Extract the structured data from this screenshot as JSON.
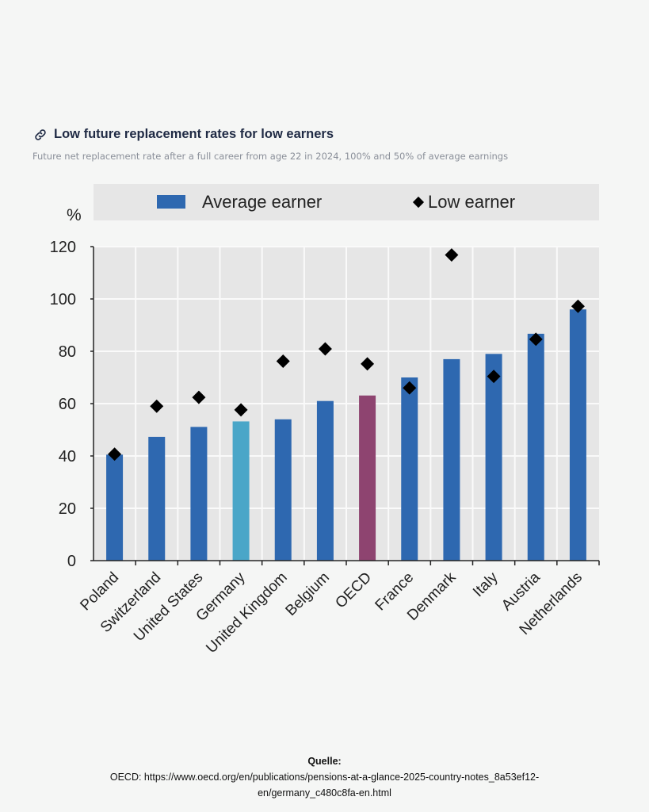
{
  "header": {
    "title": "Low future replacement rates for low earners",
    "subtitle": "Future net replacement rate after a full career from age 22 in 2024, 100% and 50% of average earnings",
    "icon": "link-icon"
  },
  "chart_data": {
    "type": "bar",
    "title": "Low future replacement rates for low earners",
    "subtitle": "Future net replacement rate after a full career from age 22 in 2024, 100% and 50% of average earnings",
    "ylabel": "%",
    "ylim": [
      0,
      120
    ],
    "yticks": [
      0,
      20,
      40,
      60,
      80,
      100,
      120
    ],
    "grid": true,
    "legend_position": "top",
    "categories": [
      "Poland",
      "Switzerland",
      "United States",
      "Germany",
      "United Kingdom",
      "Belgium",
      "OECD",
      "France",
      "Denmark",
      "Italy",
      "Austria",
      "Netherlands"
    ],
    "series": [
      {
        "name": "Average earner",
        "type": "bar",
        "color": "#2e68b0",
        "values": [
          40.5,
          47.3,
          51.1,
          53.2,
          54,
          61,
          63.1,
          70,
          77,
          79,
          86.7,
          96
        ]
      },
      {
        "name": "Low earner",
        "type": "scatter",
        "marker": "diamond",
        "color": "#000000",
        "values": [
          40.7,
          59,
          62.4,
          57.6,
          76.2,
          80.9,
          75.2,
          66,
          116.8,
          70.4,
          84.6,
          97.2
        ]
      }
    ],
    "highlight_colors": {
      "Germany": "#4aa6c8",
      "OECD": "#8e4470"
    }
  },
  "footer": {
    "label": "Quelle:",
    "line1": "OECD: https://www.oecd.org/en/publications/pensions-at-a-glance-2025-country-notes_8a53ef12-",
    "line2": "en/germany_c480c8fa-en.html"
  }
}
